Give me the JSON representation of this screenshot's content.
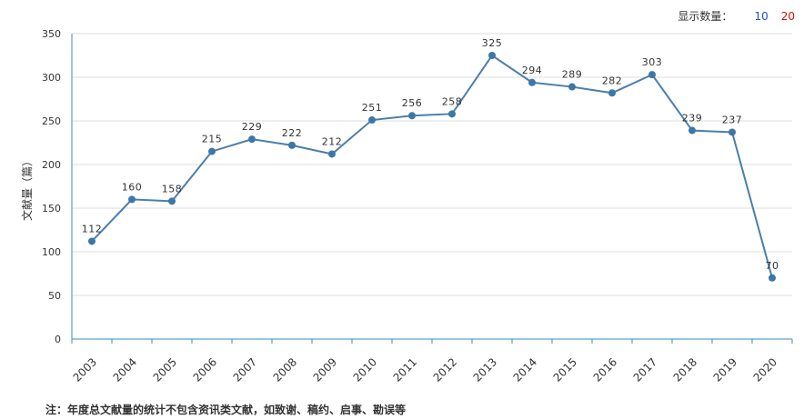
{
  "display": {
    "label": "显示数量：",
    "options": [
      "10",
      "20"
    ]
  },
  "colors": {
    "line": "#4a7fad",
    "point": "#3d76a8",
    "grid": "#dcdcdc",
    "axis": "#3a8fc2",
    "option_10": "#1f4fd6",
    "option_20": "#d60f0f"
  },
  "chart_data": {
    "type": "line",
    "title": "",
    "xlabel": "",
    "ylabel": "文献量（篇）",
    "categories": [
      "2003",
      "2004",
      "2005",
      "2006",
      "2007",
      "2008",
      "2009",
      "2010",
      "2011",
      "2012",
      "2013",
      "2014",
      "2015",
      "2016",
      "2017",
      "2018",
      "2019",
      "2020"
    ],
    "values": [
      112,
      160,
      158,
      215,
      229,
      222,
      212,
      251,
      256,
      258,
      325,
      294,
      289,
      282,
      303,
      239,
      237,
      70
    ],
    "ylim": [
      0,
      350
    ],
    "yticks": [
      0,
      50,
      100,
      150,
      200,
      250,
      300,
      350
    ],
    "grid": true,
    "data_labels": true
  },
  "note": "注：年度总文献量的统计不包含资讯类文献，如致谢、稿约、启事、勘误等"
}
